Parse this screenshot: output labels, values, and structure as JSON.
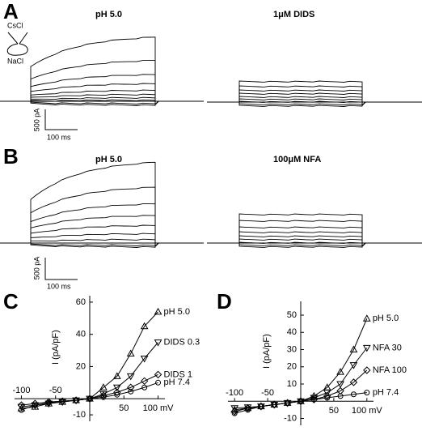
{
  "panels": {
    "a": "A",
    "b": "B",
    "c": "C",
    "d": "D"
  },
  "inset": {
    "bath": "CsCl",
    "pipette": "NaCl"
  },
  "traces": {
    "a_left": "pH 5.0",
    "a_right": "1μM DIDS",
    "b_left": "pH 5.0",
    "b_right": "100μM NFA"
  },
  "scale_bars": {
    "a_current": "500 pA",
    "a_time": "100 ms",
    "b_current": "500 pA",
    "b_time": "100 ms"
  },
  "chart_data": [
    {
      "type": "line",
      "y_label": "I (pA/pF)",
      "x": [
        -100,
        -80,
        -60,
        -40,
        -20,
        0,
        20,
        40,
        60,
        80,
        100
      ],
      "xlim": [
        -110,
        110
      ],
      "xticks": [
        -100,
        -50,
        50,
        {
          "value": 100,
          "label": "100 mV"
        }
      ],
      "ylim": [
        -14,
        64
      ],
      "yticks": [
        -10,
        20,
        40,
        60
      ],
      "series": [
        {
          "name": "pH 5.0",
          "color": "#000000",
          "marker": "triangle-up",
          "values": [
            -6,
            -5,
            -3,
            -2,
            -1,
            0,
            7,
            14,
            28,
            45,
            54
          ]
        },
        {
          "name": "DIDS 0.3",
          "color": "#000000",
          "marker": "triangle-down",
          "values": [
            -5,
            -4,
            -3,
            -2,
            -1,
            0,
            3,
            7,
            14,
            25,
            35
          ]
        },
        {
          "name": "DIDS 1",
          "color": "#000000",
          "marker": "diamond",
          "values": [
            -4,
            -3,
            -2,
            -1.5,
            -1,
            0,
            2,
            4,
            7,
            11,
            15
          ]
        },
        {
          "name": "pH 7.4",
          "color": "#000000",
          "marker": "circle",
          "values": [
            -7,
            -4,
            -2.5,
            -1.5,
            -1,
            0,
            1,
            2.5,
            4.5,
            7,
            10
          ]
        }
      ]
    },
    {
      "type": "line",
      "y_label": "I (pA/pF)",
      "x": [
        -100,
        -80,
        -60,
        -40,
        -20,
        0,
        20,
        40,
        60,
        80,
        100
      ],
      "xlim": [
        -110,
        110
      ],
      "xticks": [
        -100,
        -50,
        50,
        {
          "value": 100,
          "label": "100 mV"
        }
      ],
      "ylim": [
        -14,
        58
      ],
      "yticks": [
        -10,
        10,
        20,
        30,
        40,
        50
      ],
      "series": [
        {
          "name": "pH 5.0",
          "color": "#000000",
          "marker": "triangle-up",
          "values": [
            -5,
            -4,
            -3,
            -2,
            -1,
            0,
            3,
            8,
            17,
            30,
            48
          ]
        },
        {
          "name": "NFA 30",
          "color": "#000000",
          "marker": "triangle-down",
          "values": [
            -4,
            -3.5,
            -3,
            -2,
            -1,
            0,
            2,
            5,
            10,
            21,
            31
          ]
        },
        {
          "name": "NFA 100",
          "color": "#000000",
          "marker": "diamond",
          "values": [
            -6,
            -4,
            -3,
            -2,
            -1,
            0,
            1,
            3,
            6,
            11,
            18
          ]
        },
        {
          "name": "pH 7.4",
          "color": "#000000",
          "marker": "circle",
          "values": [
            -7,
            -5,
            -3,
            -2,
            -1,
            0,
            1,
            2,
            3,
            4,
            5
          ]
        }
      ]
    }
  ]
}
